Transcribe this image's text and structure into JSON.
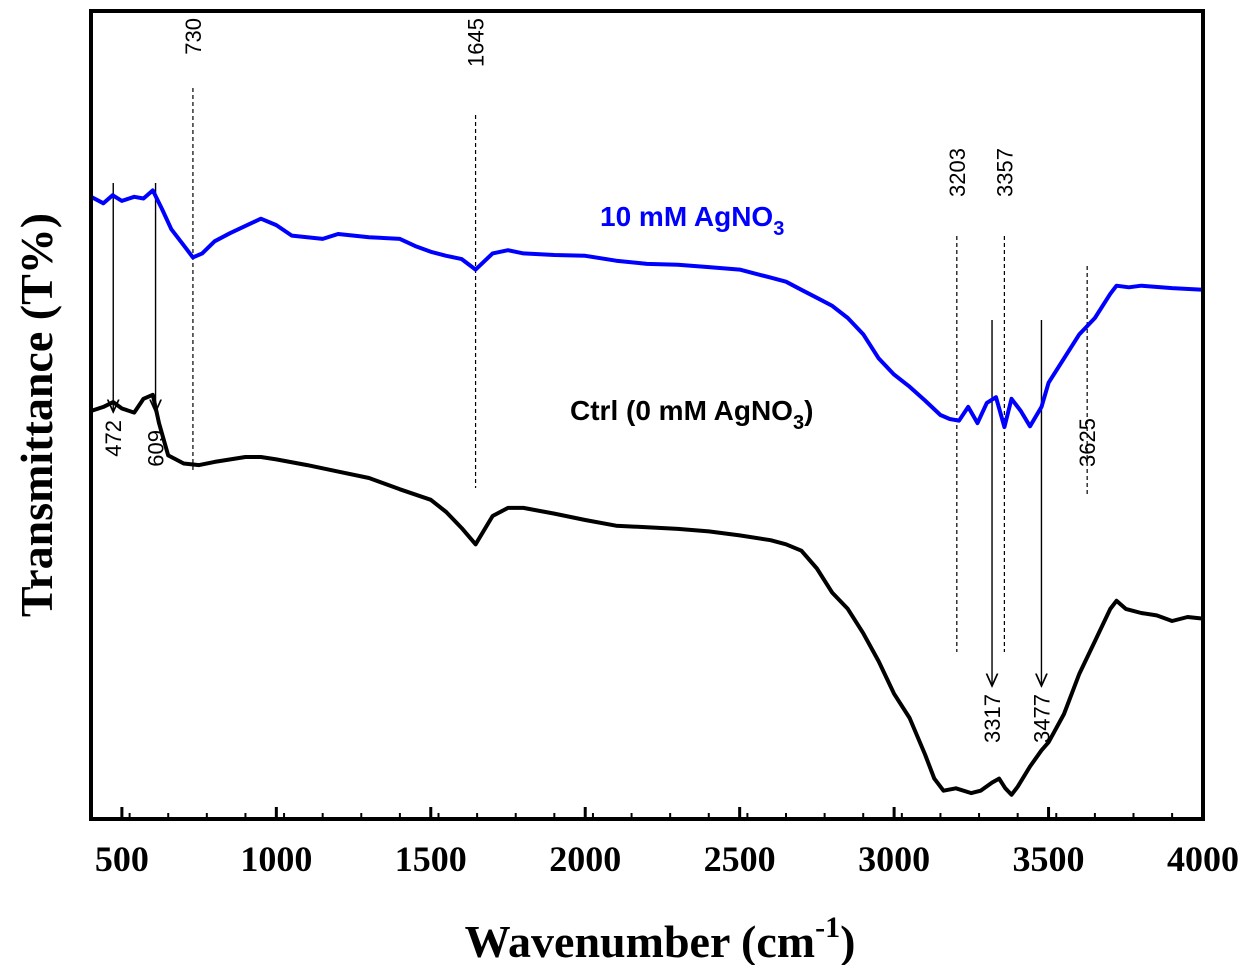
{
  "chart_data": {
    "type": "line",
    "title": "",
    "xlabel": "Wavenumber (cm",
    "xlabel_sup": "-1",
    "xlabel_close": ")",
    "ylabel": "Transmittance (T%)",
    "xlim": [
      400,
      4000
    ],
    "ylim": [
      0,
      100
    ],
    "x_ticks": [
      500,
      1000,
      1500,
      2000,
      2500,
      3000,
      3500,
      4000
    ],
    "y_ticks_shown": false,
    "series": [
      {
        "name": "10 mM AgNO",
        "name_sub": "3",
        "color": "#0000ff",
        "x": [
          400,
          440,
          470,
          500,
          540,
          570,
          600,
          630,
          660,
          700,
          730,
          760,
          800,
          850,
          900,
          950,
          1000,
          1050,
          1100,
          1150,
          1200,
          1250,
          1300,
          1400,
          1450,
          1500,
          1550,
          1600,
          1645,
          1700,
          1750,
          1800,
          1900,
          2000,
          2100,
          2200,
          2300,
          2400,
          2500,
          2600,
          2650,
          2700,
          2750,
          2800,
          2850,
          2900,
          2950,
          3000,
          3050,
          3100,
          3150,
          3180,
          3210,
          3240,
          3270,
          3300,
          3330,
          3357,
          3380,
          3410,
          3440,
          3477,
          3500,
          3550,
          3600,
          3650,
          3700,
          3720,
          3760,
          3800,
          3900,
          4000
        ],
        "y": [
          77.0,
          76.2,
          77.2,
          76.5,
          77.0,
          76.8,
          77.8,
          75.5,
          73.0,
          71.0,
          69.5,
          70.0,
          71.5,
          72.5,
          73.4,
          74.3,
          73.5,
          72.2,
          72.0,
          71.8,
          72.4,
          72.2,
          72.0,
          71.8,
          70.9,
          70.2,
          69.7,
          69.3,
          68.0,
          70.0,
          70.4,
          70.0,
          69.8,
          69.7,
          69.1,
          68.7,
          68.6,
          68.3,
          68.0,
          67.0,
          66.5,
          65.5,
          64.5,
          63.5,
          62.0,
          60.0,
          57.0,
          55.0,
          53.5,
          51.8,
          50.0,
          49.5,
          49.3,
          51.0,
          49.0,
          51.5,
          52.2,
          48.5,
          52.0,
          50.5,
          48.6,
          51.0,
          54.0,
          57.0,
          60.0,
          62.0,
          65.0,
          66.0,
          65.8,
          66.0,
          65.7,
          65.5
        ]
      },
      {
        "name": "Ctrl (0 mM AgNO",
        "name_sub": "3",
        "name_close": ")",
        "color": "#000000",
        "x": [
          400,
          440,
          472,
          500,
          540,
          570,
          600,
          620,
          650,
          700,
          750,
          800,
          900,
          950,
          1000,
          1100,
          1200,
          1300,
          1400,
          1500,
          1550,
          1600,
          1645,
          1700,
          1750,
          1800,
          1900,
          2000,
          2100,
          2200,
          2300,
          2400,
          2500,
          2600,
          2650,
          2700,
          2750,
          2800,
          2850,
          2900,
          2950,
          3000,
          3050,
          3100,
          3130,
          3160,
          3200,
          3250,
          3280,
          3317,
          3340,
          3360,
          3380,
          3400,
          3440,
          3477,
          3500,
          3550,
          3600,
          3650,
          3700,
          3720,
          3750,
          3800,
          3850,
          3900,
          3950,
          4000
        ],
        "y": [
          50.5,
          51.0,
          51.6,
          50.8,
          50.3,
          52.0,
          52.5,
          49.0,
          45.0,
          44.0,
          43.8,
          44.2,
          44.8,
          44.8,
          44.5,
          43.8,
          43.0,
          42.2,
          40.8,
          39.5,
          38.0,
          36.0,
          34.0,
          37.5,
          38.5,
          38.5,
          37.8,
          37.0,
          36.3,
          36.1,
          35.9,
          35.6,
          35.1,
          34.5,
          34.0,
          33.2,
          31.0,
          28.0,
          26.0,
          23.0,
          19.5,
          15.5,
          12.5,
          8.0,
          5.0,
          3.5,
          3.8,
          3.2,
          3.5,
          4.5,
          5.0,
          3.8,
          3.0,
          4.0,
          6.5,
          8.5,
          9.5,
          13.0,
          18.0,
          22.0,
          26.0,
          27.0,
          26.0,
          25.5,
          25.2,
          24.5,
          25.0,
          24.8
        ]
      }
    ],
    "annotations": {
      "dashed": [
        {
          "label": "730",
          "x": 730
        },
        {
          "label": "1645",
          "x": 1645
        },
        {
          "label": "3203",
          "x": 3203
        },
        {
          "label": "3357",
          "x": 3357
        },
        {
          "label": "3625",
          "x": 3625
        }
      ],
      "arrows": [
        {
          "label": "472",
          "x": 472
        },
        {
          "label": "609",
          "x": 609
        },
        {
          "label": "3317",
          "x": 3317
        },
        {
          "label": "3477",
          "x": 3477
        }
      ]
    }
  }
}
